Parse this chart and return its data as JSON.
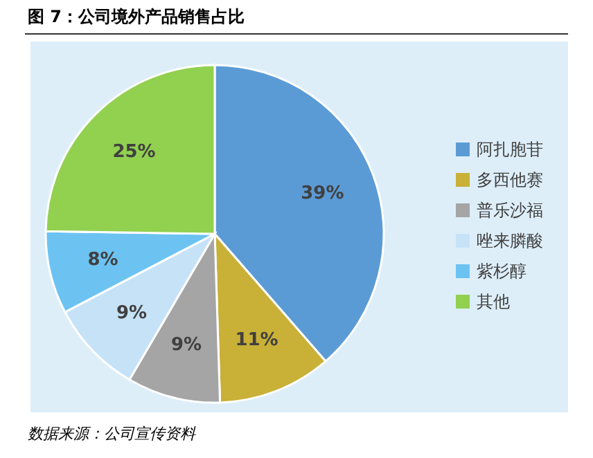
{
  "chart_data": {
    "type": "pie",
    "title": "图 7：公司境外产品销售占比",
    "categories": [
      "阿扎胞苷",
      "多西他赛",
      "普乐沙福",
      "唑来膦酸",
      "紫杉醇",
      "其他"
    ],
    "values": [
      39,
      11,
      9,
      9,
      8,
      25
    ],
    "value_labels": [
      "39%",
      "11%",
      "9%",
      "9%",
      "8%",
      "25%"
    ],
    "colors": [
      "#5b9bd5",
      "#c9b037",
      "#a5a5a5",
      "#c6e2f7",
      "#6cc3f2",
      "#92d050"
    ],
    "legend": "right",
    "annotations": [
      "数据来源：公司宣传资料"
    ]
  }
}
